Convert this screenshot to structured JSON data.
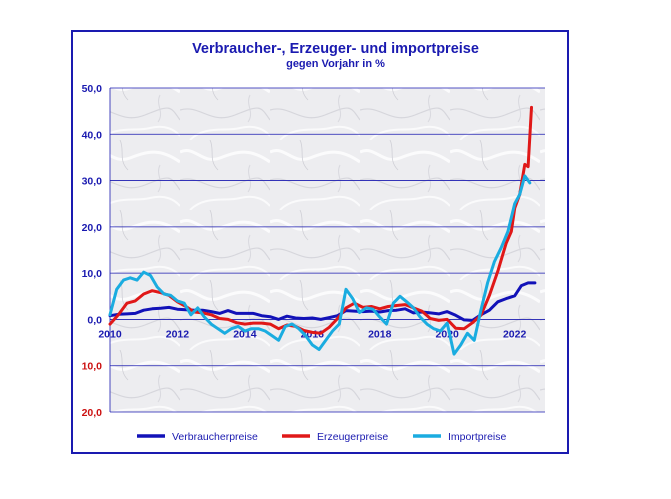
{
  "chart_data": {
    "type": "line",
    "title": "Verbraucher-, Erzeuger- und importpreise",
    "subtitle": "gegen Vorjahr in %",
    "y_ticks": [
      {
        "value": 50,
        "label": "50,0",
        "color": "#1a1ab0"
      },
      {
        "value": 40,
        "label": "40,0",
        "color": "#1a1ab0"
      },
      {
        "value": 30,
        "label": "30,0",
        "color": "#1a1ab0"
      },
      {
        "value": 20,
        "label": "20,0",
        "color": "#1a1ab0"
      },
      {
        "value": 10,
        "label": "10,0",
        "color": "#1a1ab0"
      },
      {
        "value": 0,
        "label": "0,0",
        "color": "#1a1ab0"
      },
      {
        "value": -10,
        "label": "10,0",
        "color": "#cc1111"
      },
      {
        "value": -20,
        "label": "20,0",
        "color": "#cc1111"
      }
    ],
    "x_ticks": [
      {
        "value": 2010,
        "label": "2010"
      },
      {
        "value": 2012,
        "label": "2012"
      },
      {
        "value": 2014,
        "label": "2014"
      },
      {
        "value": 2016,
        "label": "2016"
      },
      {
        "value": 2018,
        "label": "2018"
      },
      {
        "value": 2020,
        "label": "2020"
      },
      {
        "value": 2022,
        "label": "2022"
      }
    ],
    "xlim": [
      2010,
      2022.9
    ],
    "ylim": [
      -20,
      50
    ],
    "grid": true,
    "legend_position": "bottom",
    "series": [
      {
        "name": "Verbraucherpreise",
        "color": "#1212b8",
        "x": [
          2010.0,
          2010.25,
          2010.5,
          2010.75,
          2011.0,
          2011.25,
          2011.5,
          2011.75,
          2012.0,
          2012.25,
          2012.5,
          2012.75,
          2013.0,
          2013.25,
          2013.5,
          2013.75,
          2014.0,
          2014.25,
          2014.5,
          2014.75,
          2015.0,
          2015.25,
          2015.5,
          2015.75,
          2016.0,
          2016.25,
          2016.5,
          2016.75,
          2017.0,
          2017.25,
          2017.5,
          2017.75,
          2018.0,
          2018.25,
          2018.5,
          2018.75,
          2019.0,
          2019.25,
          2019.5,
          2019.75,
          2020.0,
          2020.25,
          2020.5,
          2020.75,
          2021.0,
          2021.25,
          2021.5,
          2021.75,
          2022.0,
          2022.2,
          2022.4,
          2022.6
        ],
        "values": [
          0.8,
          1.1,
          1.2,
          1.3,
          2.0,
          2.3,
          2.4,
          2.6,
          2.2,
          2.1,
          2.0,
          2.0,
          1.7,
          1.3,
          1.9,
          1.3,
          1.3,
          1.3,
          0.8,
          0.6,
          0.0,
          0.7,
          0.3,
          0.2,
          0.3,
          0.0,
          0.4,
          0.8,
          1.9,
          1.8,
          1.7,
          1.8,
          1.6,
          1.9,
          2.0,
          2.3,
          1.4,
          1.6,
          1.4,
          1.2,
          1.7,
          0.9,
          -0.1,
          -0.2,
          1.0,
          2.0,
          3.8,
          4.5,
          5.1,
          7.3,
          7.9,
          7.9
        ]
      },
      {
        "name": "Erzeugerpreise",
        "color": "#e01818",
        "x": [
          2010.0,
          2010.25,
          2010.5,
          2010.75,
          2011.0,
          2011.25,
          2011.5,
          2011.75,
          2012.0,
          2012.25,
          2012.5,
          2012.75,
          2013.0,
          2013.25,
          2013.5,
          2013.75,
          2014.0,
          2014.25,
          2014.5,
          2014.75,
          2015.0,
          2015.25,
          2015.5,
          2015.75,
          2016.0,
          2016.25,
          2016.5,
          2016.75,
          2017.0,
          2017.25,
          2017.5,
          2017.75,
          2018.0,
          2018.25,
          2018.5,
          2018.75,
          2019.0,
          2019.25,
          2019.5,
          2019.75,
          2020.0,
          2020.25,
          2020.5,
          2020.75,
          2021.0,
          2021.25,
          2021.5,
          2021.75,
          2021.9,
          2022.0,
          2022.15,
          2022.3,
          2022.4,
          2022.5
        ],
        "values": [
          -1.0,
          1.0,
          3.5,
          4.0,
          5.5,
          6.2,
          5.8,
          5.2,
          3.8,
          2.8,
          1.6,
          1.4,
          1.0,
          0.2,
          0.0,
          -0.7,
          -1.0,
          -0.8,
          -0.8,
          -1.0,
          -2.0,
          -1.2,
          -1.5,
          -2.4,
          -2.8,
          -3.0,
          -1.7,
          0.2,
          2.5,
          3.5,
          2.6,
          2.8,
          2.3,
          2.8,
          3.0,
          3.2,
          2.5,
          1.8,
          0.2,
          -0.2,
          0.0,
          -1.9,
          -2.0,
          -0.7,
          0.9,
          5.2,
          10.4,
          16.5,
          19.0,
          24.0,
          27.0,
          33.5,
          33.0,
          45.8
        ]
      },
      {
        "name": "Importpreise",
        "color": "#1aace0",
        "x": [
          2010.0,
          2010.2,
          2010.4,
          2010.6,
          2010.8,
          2011.0,
          2011.2,
          2011.4,
          2011.6,
          2011.8,
          2012.0,
          2012.2,
          2012.4,
          2012.6,
          2012.8,
          2013.0,
          2013.2,
          2013.4,
          2013.6,
          2013.8,
          2014.0,
          2014.2,
          2014.4,
          2014.6,
          2014.8,
          2015.0,
          2015.2,
          2015.4,
          2015.6,
          2015.8,
          2016.0,
          2016.2,
          2016.4,
          2016.6,
          2016.8,
          2017.0,
          2017.2,
          2017.4,
          2017.6,
          2017.8,
          2018.0,
          2018.2,
          2018.4,
          2018.6,
          2018.8,
          2019.0,
          2019.2,
          2019.4,
          2019.6,
          2019.8,
          2020.0,
          2020.2,
          2020.4,
          2020.6,
          2020.8,
          2021.0,
          2021.2,
          2021.4,
          2021.6,
          2021.8,
          2022.0,
          2022.15,
          2022.3,
          2022.45
        ],
        "values": [
          1.0,
          6.5,
          8.5,
          9.0,
          8.5,
          10.2,
          9.5,
          7.0,
          5.5,
          5.2,
          4.0,
          3.5,
          1.0,
          2.5,
          0.5,
          -1.0,
          -2.0,
          -3.0,
          -2.0,
          -1.5,
          -2.5,
          -2.0,
          -2.0,
          -2.5,
          -3.5,
          -4.5,
          -1.5,
          -1.0,
          -2.0,
          -3.5,
          -5.5,
          -6.5,
          -4.5,
          -2.5,
          -1.0,
          6.5,
          4.5,
          1.5,
          2.5,
          2.2,
          0.5,
          -1.0,
          3.5,
          5.0,
          3.8,
          2.5,
          0.5,
          -1.0,
          -2.0,
          -2.5,
          -0.8,
          -7.5,
          -5.5,
          -3.0,
          -4.5,
          2.0,
          8.0,
          12.5,
          15.5,
          19.0,
          25.0,
          27.0,
          31.0,
          29.5
        ]
      }
    ]
  }
}
